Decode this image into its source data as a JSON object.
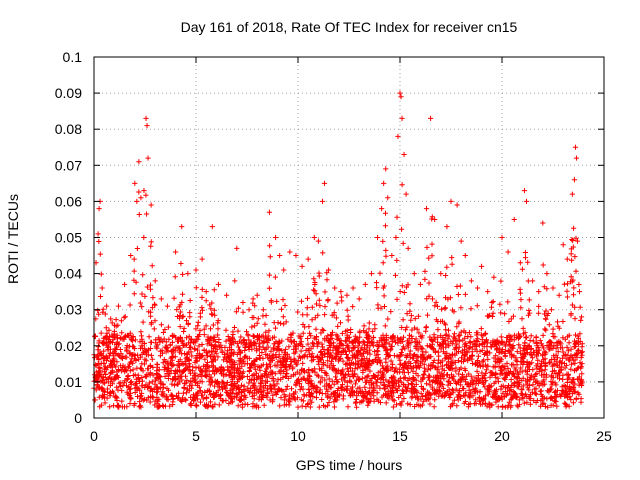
{
  "chart_data": {
    "type": "scatter",
    "title": "Day 161 of 2018, Rate Of TEC Index for receiver cn15",
    "xlabel": "GPS time / hours",
    "ylabel": "ROTI / TECUs",
    "xlim": [
      0,
      25
    ],
    "ylim": [
      0,
      0.1
    ],
    "x_ticks": [
      0,
      5,
      10,
      15,
      20,
      25
    ],
    "x_tick_labels": [
      "0",
      "5",
      "10",
      "15",
      "20",
      "25"
    ],
    "y_ticks": [
      0,
      0.01,
      0.02,
      0.03,
      0.04,
      0.05,
      0.06,
      0.07,
      0.08,
      0.09,
      0.1
    ],
    "y_tick_labels": [
      "0",
      "0.01",
      "0.02",
      "0.03",
      "0.04",
      "0.05",
      "0.06",
      "0.07",
      "0.08",
      "0.09",
      "0.1"
    ],
    "grid": true,
    "marker": "+",
    "series": [
      {
        "name": "ROTI",
        "color": "#ff0000",
        "points_description": "dense ROTI samples across the day; representative values including peaks",
        "points": [
          [
            0.1,
            0.043
          ],
          [
            0.2,
            0.051
          ],
          [
            0.25,
            0.058
          ],
          [
            0.3,
            0.06
          ],
          [
            0.4,
            0.036
          ],
          [
            0.6,
            0.025
          ],
          [
            0.8,
            0.021
          ],
          [
            1.0,
            0.024
          ],
          [
            1.2,
            0.031
          ],
          [
            1.5,
            0.037
          ],
          [
            1.8,
            0.045
          ],
          [
            2.0,
            0.065
          ],
          [
            2.1,
            0.06
          ],
          [
            2.2,
            0.071
          ],
          [
            2.3,
            0.061
          ],
          [
            2.45,
            0.063
          ],
          [
            2.55,
            0.083
          ],
          [
            2.6,
            0.081
          ],
          [
            2.65,
            0.072
          ],
          [
            2.8,
            0.059
          ],
          [
            3.0,
            0.038
          ],
          [
            3.3,
            0.033
          ],
          [
            3.6,
            0.031
          ],
          [
            4.0,
            0.046
          ],
          [
            4.3,
            0.053
          ],
          [
            4.6,
            0.04
          ],
          [
            5.0,
            0.041
          ],
          [
            5.3,
            0.044
          ],
          [
            5.5,
            0.035
          ],
          [
            5.8,
            0.053
          ],
          [
            6.1,
            0.037
          ],
          [
            6.5,
            0.034
          ],
          [
            6.9,
            0.038
          ],
          [
            7.0,
            0.047
          ],
          [
            7.3,
            0.032
          ],
          [
            7.6,
            0.03
          ],
          [
            7.8,
            0.033
          ],
          [
            8.0,
            0.034
          ],
          [
            8.3,
            0.03
          ],
          [
            8.6,
            0.057
          ],
          [
            8.9,
            0.05
          ],
          [
            9.1,
            0.045
          ],
          [
            9.3,
            0.041
          ],
          [
            9.6,
            0.046
          ],
          [
            9.9,
            0.045
          ],
          [
            10.2,
            0.042
          ],
          [
            10.5,
            0.044
          ],
          [
            10.8,
            0.05
          ],
          [
            11.0,
            0.049
          ],
          [
            11.2,
            0.06
          ],
          [
            11.3,
            0.065
          ],
          [
            11.5,
            0.041
          ],
          [
            11.8,
            0.036
          ],
          [
            12.1,
            0.035
          ],
          [
            12.4,
            0.034
          ],
          [
            12.7,
            0.036
          ],
          [
            13.0,
            0.033
          ],
          [
            13.3,
            0.037
          ],
          [
            13.6,
            0.04
          ],
          [
            13.9,
            0.05
          ],
          [
            14.1,
            0.058
          ],
          [
            14.2,
            0.065
          ],
          [
            14.3,
            0.069
          ],
          [
            14.4,
            0.061
          ],
          [
            14.6,
            0.045
          ],
          [
            14.8,
            0.05
          ],
          [
            14.9,
            0.078
          ],
          [
            15.0,
            0.09
          ],
          [
            15.05,
            0.089
          ],
          [
            15.1,
            0.083
          ],
          [
            15.2,
            0.073
          ],
          [
            15.3,
            0.062
          ],
          [
            15.4,
            0.047
          ],
          [
            15.7,
            0.04
          ],
          [
            16.0,
            0.037
          ],
          [
            16.3,
            0.058
          ],
          [
            16.5,
            0.083
          ],
          [
            16.7,
            0.055
          ],
          [
            17.0,
            0.04
          ],
          [
            17.3,
            0.053
          ],
          [
            17.5,
            0.06
          ],
          [
            17.8,
            0.059
          ],
          [
            18.0,
            0.049
          ],
          [
            18.2,
            0.045
          ],
          [
            18.5,
            0.038
          ],
          [
            18.8,
            0.036
          ],
          [
            19.0,
            0.042
          ],
          [
            19.3,
            0.035
          ],
          [
            19.6,
            0.039
          ],
          [
            20.0,
            0.05
          ],
          [
            20.3,
            0.046
          ],
          [
            20.6,
            0.055
          ],
          [
            20.9,
            0.043
          ],
          [
            21.1,
            0.063
          ],
          [
            21.2,
            0.06
          ],
          [
            21.5,
            0.038
          ],
          [
            21.8,
            0.035
          ],
          [
            22.0,
            0.054
          ],
          [
            22.2,
            0.04
          ],
          [
            22.5,
            0.036
          ],
          [
            22.8,
            0.034
          ],
          [
            23.0,
            0.048
          ],
          [
            23.2,
            0.044
          ],
          [
            23.45,
            0.062
          ],
          [
            23.55,
            0.066
          ],
          [
            23.6,
            0.075
          ],
          [
            23.65,
            0.072
          ],
          [
            23.7,
            0.049
          ],
          [
            23.8,
            0.035
          ],
          [
            23.9,
            0.028
          ],
          [
            0.3,
            0.012
          ],
          [
            0.8,
            0.009
          ],
          [
            1.4,
            0.014
          ],
          [
            2.0,
            0.004
          ],
          [
            2.3,
            0.003
          ],
          [
            3.1,
            0.008
          ],
          [
            4.2,
            0.01
          ],
          [
            5.2,
            0.012
          ],
          [
            6.0,
            0.007
          ],
          [
            7.2,
            0.011
          ],
          [
            8.4,
            0.009
          ],
          [
            9.4,
            0.006
          ],
          [
            10.0,
            0.003
          ],
          [
            10.6,
            0.005
          ],
          [
            11.4,
            0.008
          ],
          [
            12.6,
            0.01
          ],
          [
            13.5,
            0.007
          ],
          [
            14.5,
            0.009
          ],
          [
            15.0,
            0.004
          ],
          [
            15.6,
            0.006
          ],
          [
            16.6,
            0.008
          ],
          [
            17.6,
            0.007
          ],
          [
            18.6,
            0.01
          ],
          [
            19.4,
            0.003
          ],
          [
            19.8,
            0.005
          ],
          [
            20.6,
            0.009
          ],
          [
            21.6,
            0.008
          ],
          [
            22.6,
            0.006
          ],
          [
            23.4,
            0.01
          ],
          [
            23.9,
            0.009
          ]
        ]
      }
    ]
  }
}
